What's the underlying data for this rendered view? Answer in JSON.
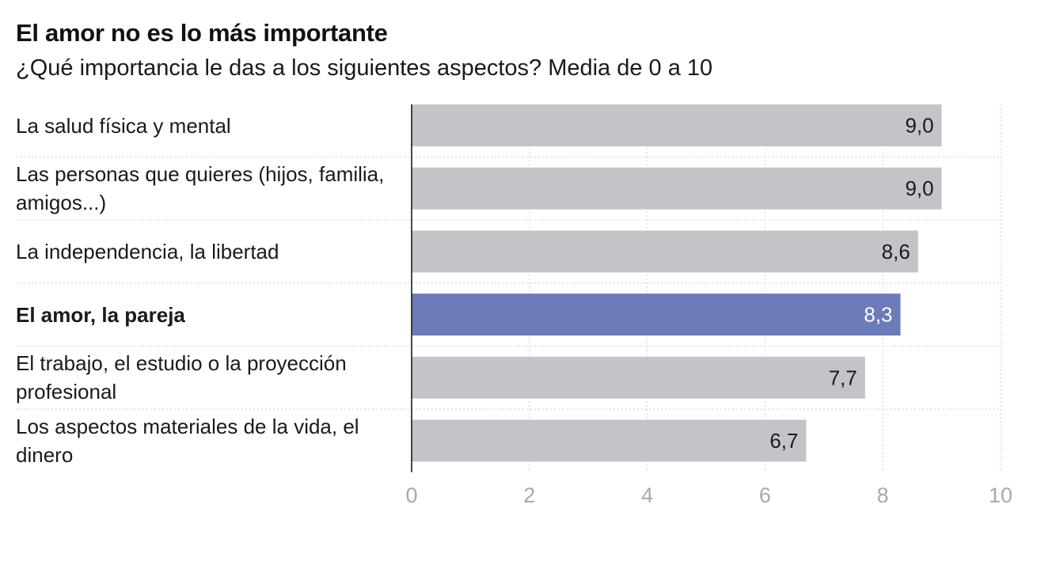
{
  "header": {
    "title": "El amor no es lo más importante",
    "subtitle": "¿Qué importancia le das a los siguientes aspectos? Media de 0 a 10"
  },
  "colors": {
    "bar": "#c2c4c8",
    "highlight": "#6c7bb9",
    "axis": "#1a1a1a",
    "grid": "#d9d9d9",
    "tick": "#a8a8a8"
  },
  "chart_data": {
    "type": "bar",
    "orientation": "horizontal",
    "categories": [
      "La salud física y mental",
      "Las personas que quieres (hijos, familia, amigos...)",
      "La independencia, la libertad",
      "El amor, la pareja",
      "El trabajo, el estudio o la proyección profesional",
      "Los aspectos materiales de la vida, el dinero"
    ],
    "values": [
      9.0,
      9.0,
      8.6,
      8.3,
      7.7,
      6.7
    ],
    "value_labels": [
      "9,0",
      "9,0",
      "8,6",
      "8,3",
      "7,7",
      "6,7"
    ],
    "highlight_index": 3,
    "xlim": [
      0,
      10
    ],
    "xticks": [
      0,
      2,
      4,
      6,
      8,
      10
    ],
    "grid": "vertical dotted"
  }
}
